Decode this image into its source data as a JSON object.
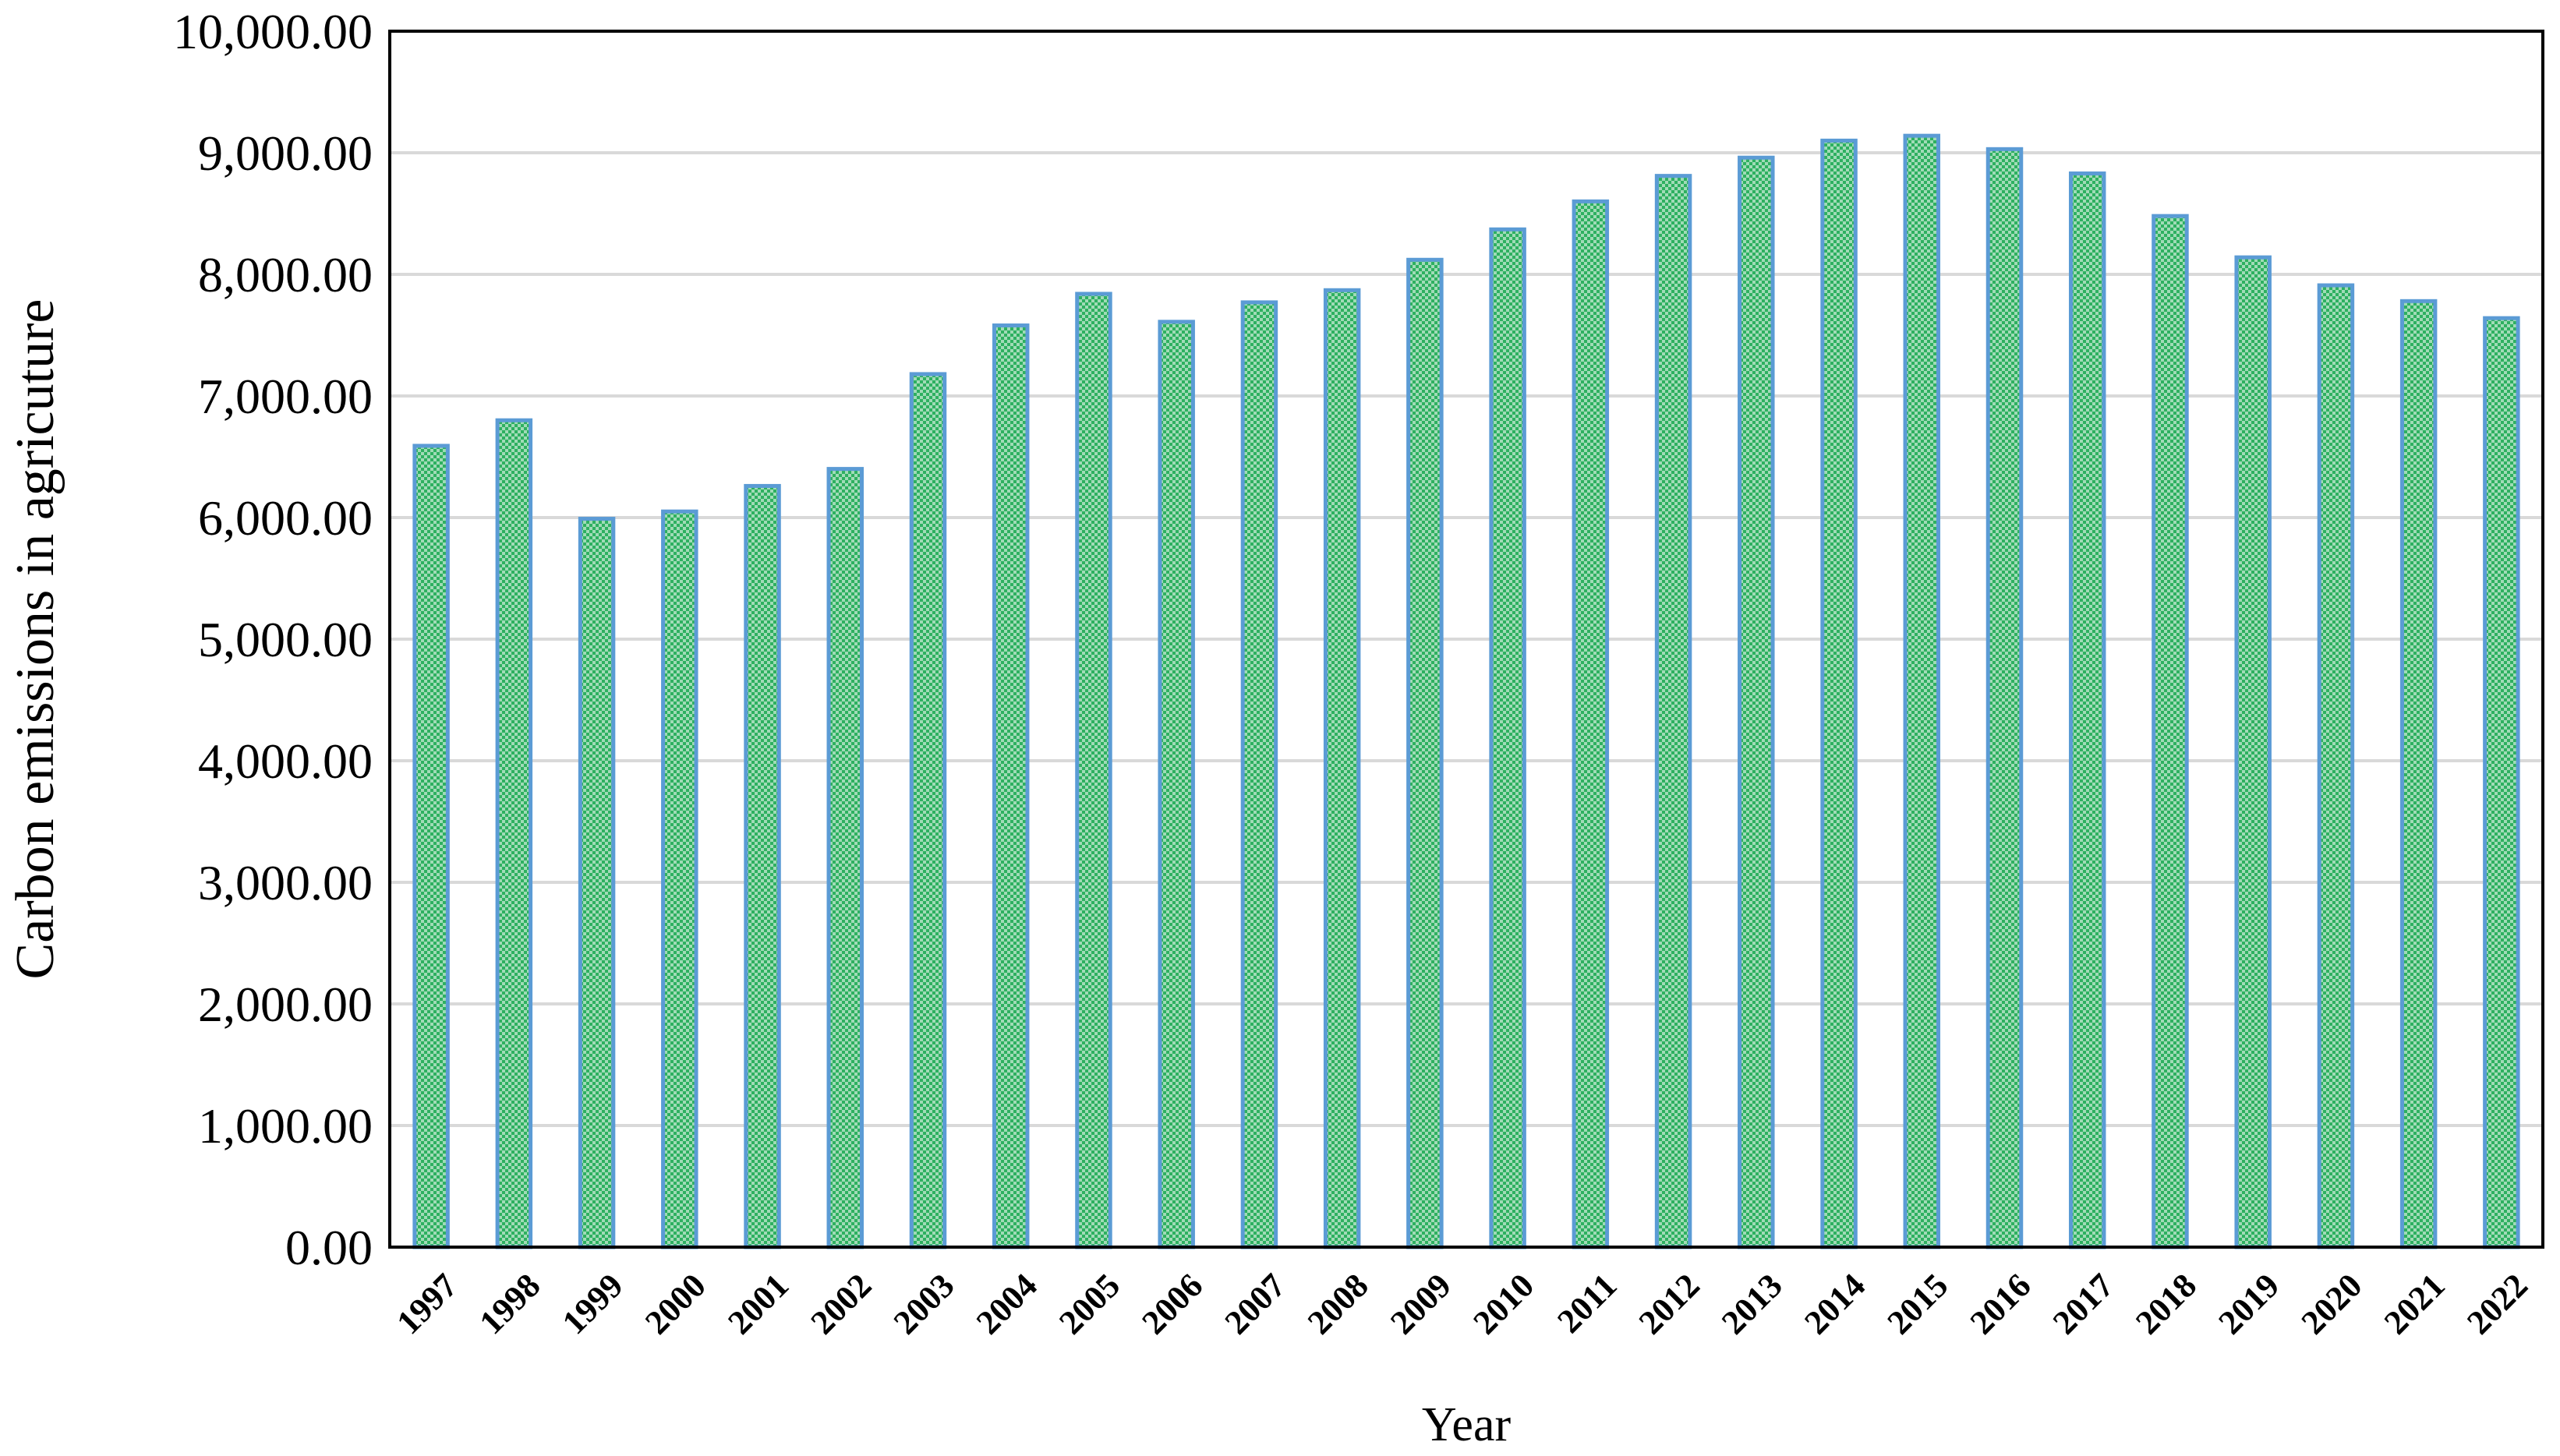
{
  "chart_data": {
    "type": "bar",
    "title": "",
    "xlabel": "Year",
    "ylabel": "Carbon emissions in agricuture",
    "ylim": [
      0,
      10000
    ],
    "y_ticks": [
      "0.00",
      "1,000.00",
      "2,000.00",
      "3,000.00",
      "4,000.00",
      "5,000.00",
      "6,000.00",
      "7,000.00",
      "8,000.00",
      "9,000.00",
      "10,000.00"
    ],
    "y_tick_values": [
      0,
      1000,
      2000,
      3000,
      4000,
      5000,
      6000,
      7000,
      8000,
      9000,
      10000
    ],
    "categories": [
      "1997",
      "1998",
      "1999",
      "2000",
      "2001",
      "2002",
      "2003",
      "2004",
      "2005",
      "2006",
      "2007",
      "2008",
      "2009",
      "2010",
      "2011",
      "2012",
      "2013",
      "2014",
      "2015",
      "2016",
      "2017",
      "2018",
      "2019",
      "2020",
      "2021",
      "2022"
    ],
    "values": [
      6590,
      6800,
      5990,
      6050,
      6260,
      6400,
      7180,
      7580,
      7840,
      7610,
      7770,
      7870,
      8120,
      8370,
      8600,
      8810,
      8960,
      9100,
      9140,
      9030,
      8830,
      8480,
      8140,
      7910,
      7780,
      7640
    ],
    "grid": true,
    "legend": "none",
    "colors": {
      "bar_fill": "#2eb060",
      "bar_pattern_light": "#ffffff",
      "bar_edge": "#5b9bd5",
      "gridline": "#d9d9d9",
      "frame": "#000000"
    }
  }
}
